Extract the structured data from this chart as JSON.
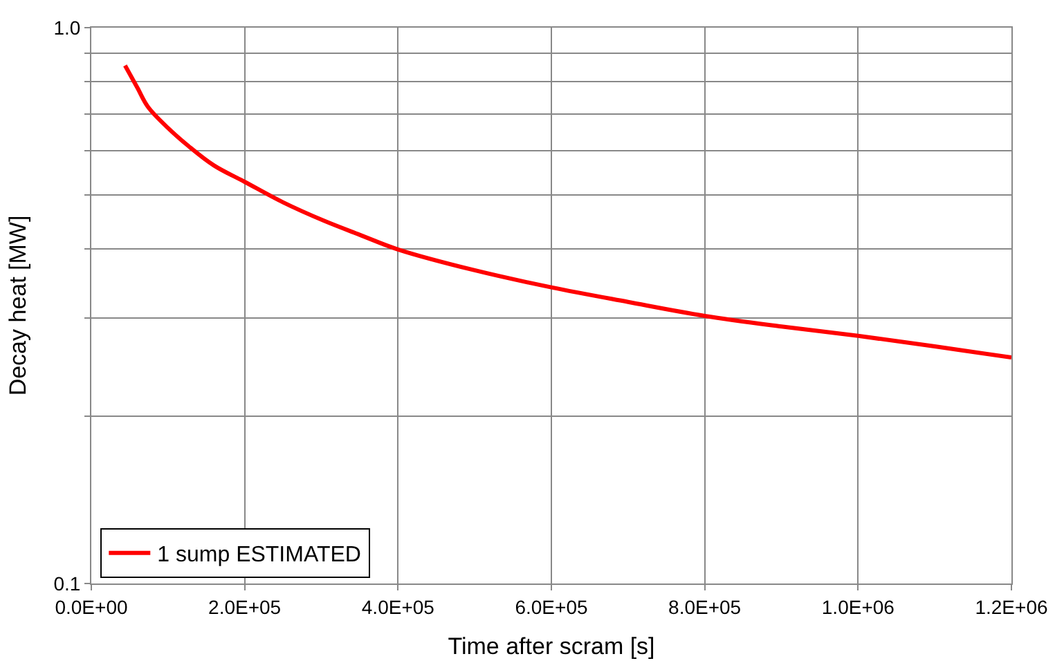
{
  "chart_data": {
    "type": "line",
    "xlabel": "Time after scram [s]",
    "ylabel": "Decay heat [MW]",
    "x": [
      44000,
      60000,
      74000,
      100000,
      127000,
      160000,
      200000,
      250000,
      304000,
      350000,
      400000,
      500000,
      600000,
      700000,
      800000,
      900000,
      1000000,
      1100000,
      1200000
    ],
    "series": [
      {
        "name": "1 sump ESTIMATED",
        "color": "#ff0000",
        "values": [
          0.855,
          0.78,
          0.72,
          0.66,
          0.612,
          0.565,
          0.528,
          0.485,
          0.449,
          0.424,
          0.399,
          0.366,
          0.341,
          0.321,
          0.303,
          0.29,
          0.279,
          0.267,
          0.255
        ]
      }
    ],
    "xlim": [
      0,
      1200000
    ],
    "xticks": [
      {
        "value": 0,
        "label": "0.0E+00"
      },
      {
        "value": 200000,
        "label": "2.0E+05"
      },
      {
        "value": 400000,
        "label": "4.0E+05"
      },
      {
        "value": 600000,
        "label": "6.0E+05"
      },
      {
        "value": 800000,
        "label": "8.0E+05"
      },
      {
        "value": 1000000,
        "label": "1.0E+06"
      },
      {
        "value": 1200000,
        "label": "1.2E+06"
      }
    ],
    "ylim": [
      0.1,
      1.0
    ],
    "yticks": [
      0.1,
      {
        "value": 0.2,
        "label": null
      },
      {
        "value": 0.3,
        "label": null
      },
      {
        "value": 0.4,
        "label": null
      },
      {
        "value": 0.5,
        "label": null
      },
      {
        "value": 0.6,
        "label": null
      },
      {
        "value": 0.7,
        "label": null
      },
      {
        "value": 0.8,
        "label": null
      },
      {
        "value": 0.9,
        "label": null
      },
      {
        "value": 1.0,
        "label": "1.0"
      }
    ],
    "log": "y",
    "grid": true,
    "legend": "bottom left",
    "marker": "none",
    "line_style": "solid"
  }
}
